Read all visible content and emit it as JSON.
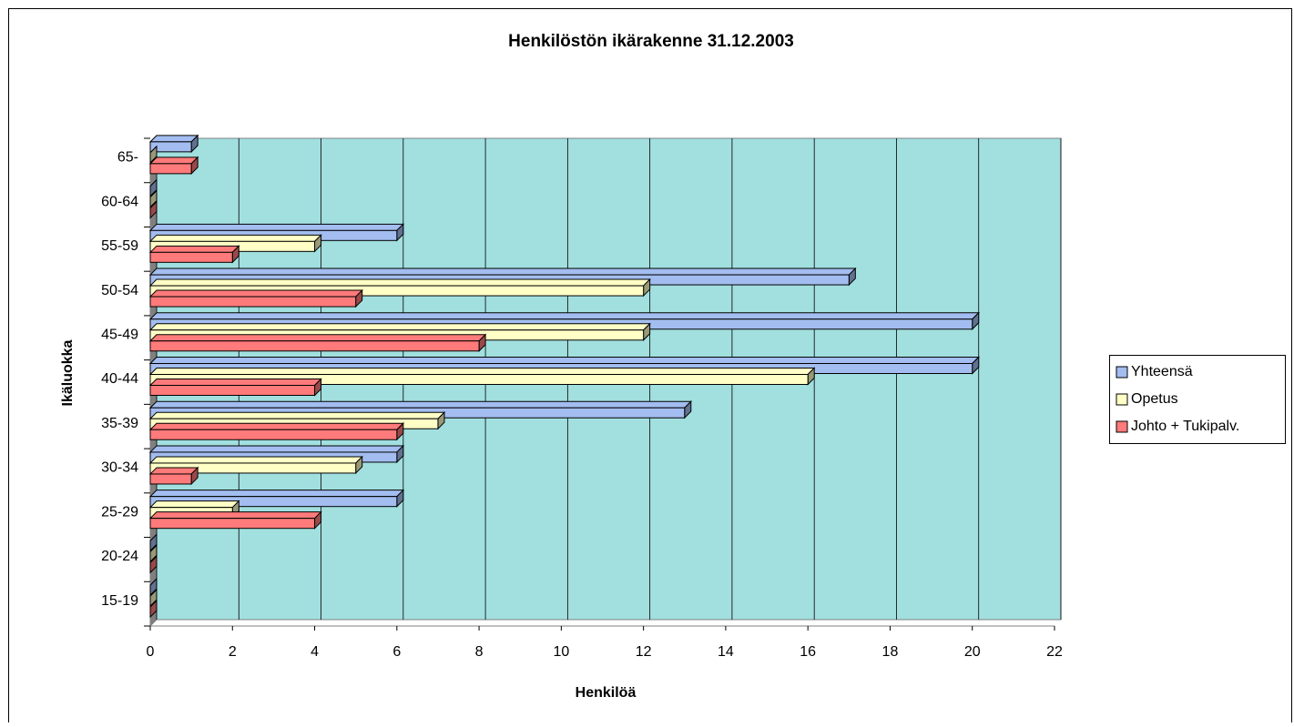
{
  "chart_data": {
    "type": "bar3d-horizontal",
    "title": "Henkilöstön ikärakenne 31.12.2003",
    "x_label": "Henkilöä",
    "y_label": "Ikäluokka",
    "categories": [
      "15-19",
      "20-24",
      "25-29",
      "30-34",
      "35-39",
      "40-44",
      "45-49",
      "50-54",
      "55-59",
      "60-64",
      "65-"
    ],
    "series": [
      {
        "name": "Yhteensä",
        "color": "#a3bdf0",
        "values": [
          0,
          0,
          6,
          6,
          13,
          20,
          20,
          17,
          6,
          0,
          1
        ]
      },
      {
        "name": "Opetus",
        "color": "#ffffc6",
        "values": [
          0,
          0,
          2,
          5,
          7,
          16,
          12,
          12,
          4,
          0,
          0
        ]
      },
      {
        "name": "Johto + Tukipalv.",
        "color": "#ff7a7a",
        "values": [
          0,
          0,
          4,
          1,
          6,
          4,
          8,
          5,
          2,
          0,
          1
        ]
      }
    ],
    "xlim": [
      0,
      22
    ],
    "xticks": [
      0,
      2,
      4,
      6,
      8,
      10,
      12,
      14,
      16,
      18,
      20,
      22
    ],
    "grid": true,
    "background": "#a2dfdf",
    "legend": "right"
  }
}
